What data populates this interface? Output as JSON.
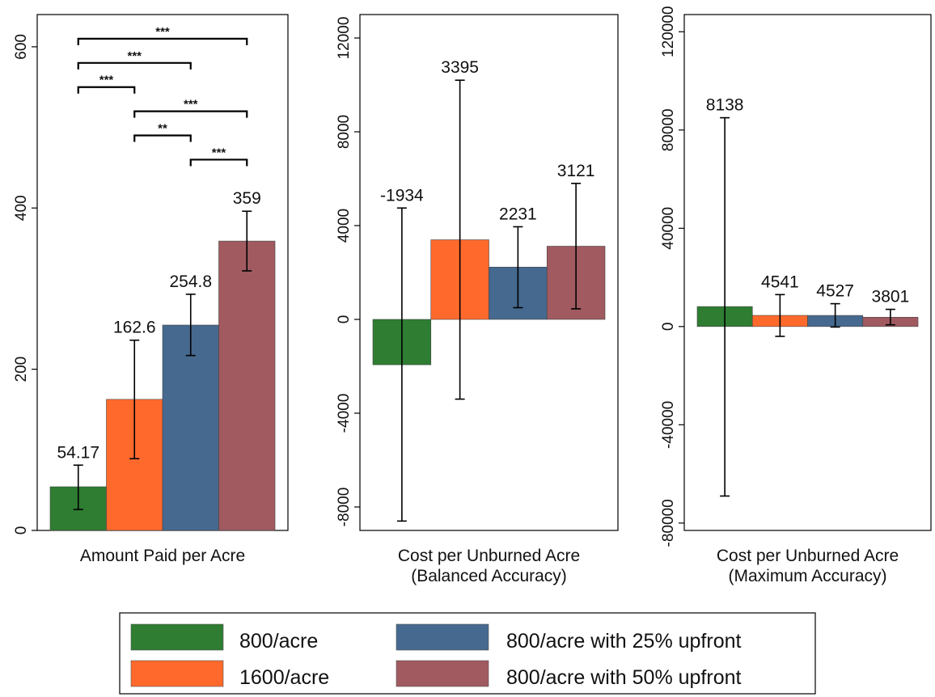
{
  "chart_data": [
    {
      "type": "bar",
      "xlabel_lines": [
        "Amount Paid per Acre"
      ],
      "ylim": [
        0,
        640
      ],
      "ticks": [
        0,
        200,
        400,
        600
      ],
      "series": [
        {
          "name": "800/acre",
          "value": 54.17,
          "label": "54.17",
          "ci": [
            26,
            81
          ]
        },
        {
          "name": "1600/acre",
          "value": 162.6,
          "label": "162.6",
          "ci": [
            89,
            236
          ]
        },
        {
          "name": "800/acre with 25% upfront",
          "value": 254.8,
          "label": "254.8",
          "ci": [
            217,
            293
          ]
        },
        {
          "name": "800/acre with 50% upfront",
          "value": 359,
          "label": "359",
          "ci": [
            322,
            396
          ]
        }
      ],
      "significance": [
        {
          "from": 0,
          "to": 3,
          "level": 610,
          "label": "***"
        },
        {
          "from": 0,
          "to": 2,
          "level": 580,
          "label": "***"
        },
        {
          "from": 0,
          "to": 1,
          "level": 550,
          "label": "***"
        },
        {
          "from": 1,
          "to": 3,
          "level": 520,
          "label": "***"
        },
        {
          "from": 1,
          "to": 2,
          "level": 490,
          "label": "**"
        },
        {
          "from": 2,
          "to": 3,
          "level": 460,
          "label": "***"
        }
      ]
    },
    {
      "type": "bar",
      "xlabel_lines": [
        "Cost per Unburned Acre",
        "(Balanced Accuracy)"
      ],
      "ylim": [
        -9000,
        13000
      ],
      "ticks": [
        -8000,
        -4000,
        0,
        4000,
        8000,
        12000
      ],
      "series": [
        {
          "name": "800/acre",
          "value": -1934,
          "label": "-1934",
          "ci": [
            -8600,
            4750
          ]
        },
        {
          "name": "1600/acre",
          "value": 3395,
          "label": "3395",
          "ci": [
            -3400,
            10200
          ]
        },
        {
          "name": "800/acre with 25% upfront",
          "value": 2231,
          "label": "2231",
          "ci": [
            500,
            3950
          ]
        },
        {
          "name": "800/acre with 50% upfront",
          "value": 3121,
          "label": "3121",
          "ci": [
            450,
            5800
          ]
        }
      ]
    },
    {
      "type": "bar",
      "xlabel_lines": [
        "Cost per Unburned Acre",
        "(Maximum Accuracy)"
      ],
      "ylim": [
        -83000,
        127000
      ],
      "ticks": [
        -80000,
        -40000,
        0,
        40000,
        80000,
        120000
      ],
      "series": [
        {
          "name": "800/acre",
          "value": 8138,
          "label": "8138",
          "ci": [
            -69000,
            85000
          ]
        },
        {
          "name": "1600/acre",
          "value": 4541,
          "label": "4541",
          "ci": [
            -4000,
            13000
          ]
        },
        {
          "name": "800/acre with 25% upfront",
          "value": 4527,
          "label": "4527",
          "ci": [
            -200,
            9300
          ]
        },
        {
          "name": "800/acre with 50% upfront",
          "value": 3801,
          "label": "3801",
          "ci": [
            700,
            7000
          ]
        }
      ]
    }
  ],
  "legend": {
    "placement": "bottom-center",
    "items": [
      {
        "label": "800/acre",
        "color": "#2e7d32"
      },
      {
        "label": "1600/acre",
        "color": "#ff6a2c"
      },
      {
        "label": "800/acre with 25% upfront",
        "color": "#46698f"
      },
      {
        "label": "800/acre with 50% upfront",
        "color": "#a05a60"
      }
    ]
  }
}
